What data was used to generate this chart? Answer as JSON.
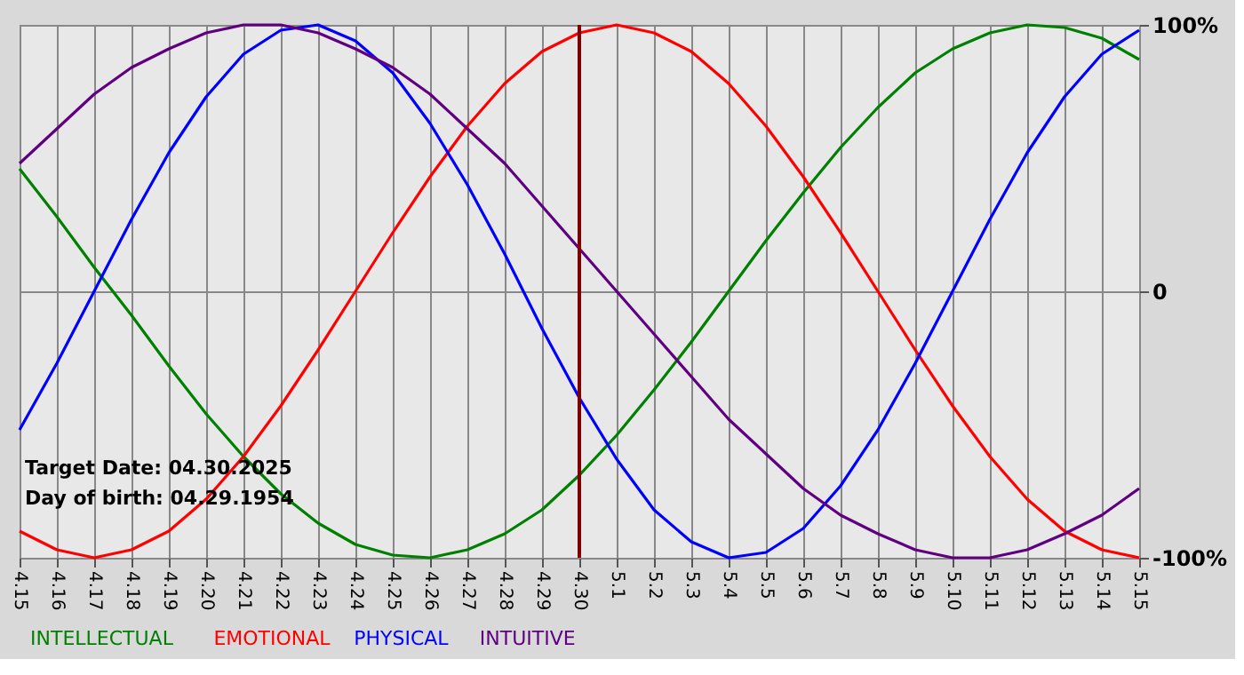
{
  "chart_data": {
    "type": "line",
    "categories": [
      "4.15",
      "4.16",
      "4.17",
      "4.18",
      "4.19",
      "4.20",
      "4.21",
      "4.22",
      "4.23",
      "4.24",
      "4.25",
      "4.26",
      "4.27",
      "4.28",
      "4.29",
      "4.30",
      "5.1",
      "5.2",
      "5.3",
      "5.4",
      "5.5",
      "5.6",
      "5.7",
      "5.8",
      "5.9",
      "5.10",
      "5.11",
      "5.12",
      "5.13",
      "5.14",
      "5.15"
    ],
    "series": [
      {
        "name": "INTELLECTUAL",
        "color": "#008000",
        "values": [
          46,
          28,
          9,
          -9,
          -28,
          -46,
          -62,
          -76,
          -87,
          -95,
          -99,
          -100,
          -97,
          -91,
          -82,
          -69,
          -54,
          -37,
          -19,
          0,
          19,
          37,
          54,
          69,
          82,
          91,
          97,
          100,
          99,
          95,
          87
        ]
      },
      {
        "name": "EMOTIONAL",
        "color": "#ff0000",
        "values": [
          -90,
          -97,
          -100,
          -97,
          -90,
          -78,
          -62,
          -43,
          -22,
          0,
          22,
          43,
          62,
          78,
          90,
          97,
          100,
          97,
          90,
          78,
          62,
          43,
          22,
          0,
          -22,
          -43,
          -62,
          -78,
          -90,
          -97,
          -100
        ]
      },
      {
        "name": "PHYSICAL",
        "color": "#0000ff",
        "values": [
          -52,
          -27,
          0,
          27,
          52,
          73,
          89,
          98,
          100,
          94,
          82,
          63,
          40,
          14,
          -14,
          -40,
          -63,
          -82,
          -94,
          -100,
          -98,
          -89,
          -73,
          -52,
          -27,
          0,
          27,
          52,
          73,
          89,
          98
        ]
      },
      {
        "name": "INTUITIVE",
        "color": "#600080",
        "values": [
          48,
          61,
          74,
          84,
          91,
          97,
          100,
          100,
          97,
          91,
          84,
          74,
          61,
          48,
          32,
          16,
          0,
          -16,
          -32,
          -48,
          -61,
          -74,
          -84,
          -91,
          -97,
          -100,
          -100,
          -97,
          -91,
          -84,
          -74
        ]
      }
    ],
    "ylim": [
      -100,
      100
    ],
    "yticks": [
      {
        "value": 100,
        "label": "100%"
      },
      0,
      {
        "value": -100,
        "label": "-100%"
      }
    ],
    "grid": true,
    "legend": "bottom",
    "line_style": "solid",
    "ref_lines": [
      {
        "axis": "x",
        "value": "4.30",
        "color": "#800000"
      }
    ],
    "annotations": [
      "Target Date: 04.30.2025",
      "Day of birth: 04.29.1954"
    ]
  }
}
